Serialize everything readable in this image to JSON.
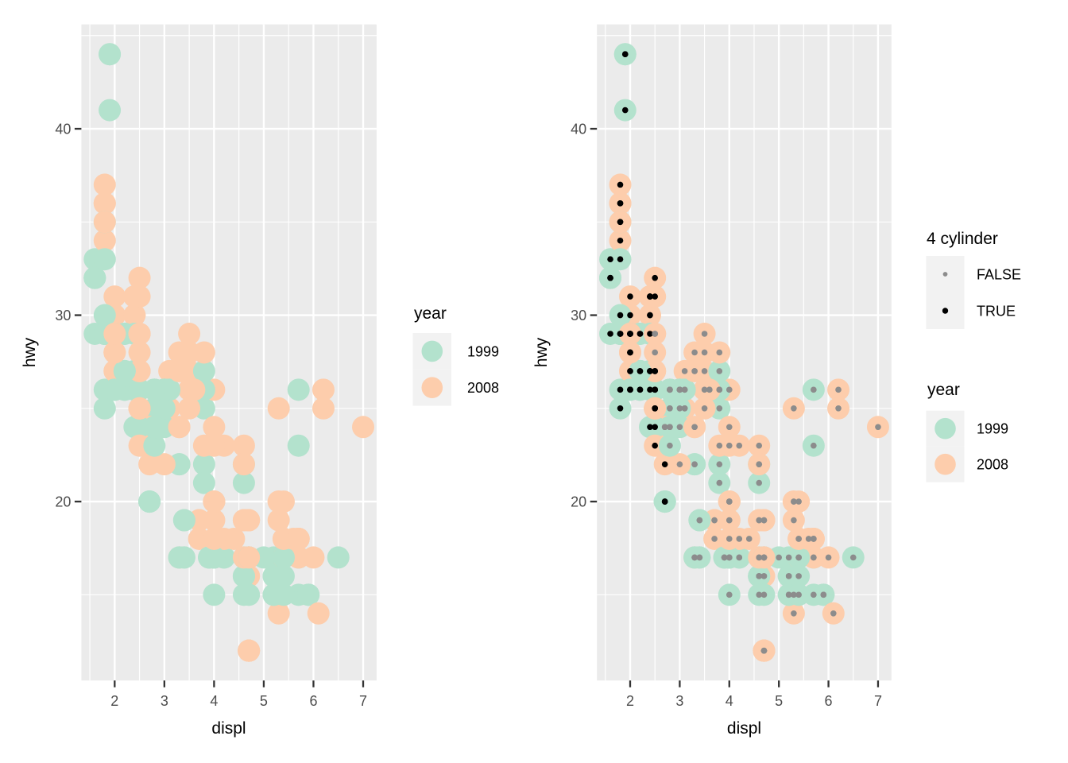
{
  "figure": {
    "background": "#FFFFFF",
    "panel_background": "#EBEBEB",
    "gridline_color": "#FFFFFF",
    "tick_mark_color": "#333333",
    "tick_label_color": "#4D4D4D",
    "legend_key_background": "#F2F2F2"
  },
  "chart_data": {
    "type": "scatter",
    "title": "",
    "xlabel": "displ",
    "ylabel": "hwy",
    "x_ticks": [
      2,
      3,
      4,
      5,
      6,
      7
    ],
    "y_ticks": [
      20,
      30,
      40
    ],
    "x_minor": [
      1.5,
      2.5,
      3.5,
      4.5,
      5.5,
      6.5
    ],
    "y_minor": [
      15,
      25,
      35,
      45
    ],
    "xlim": [
      1.33,
      7.27
    ],
    "ylim": [
      10.4,
      45.6
    ],
    "grid": "on",
    "panels": [
      {
        "name": "left",
        "overlay_cyl4_points": false
      },
      {
        "name": "right",
        "overlay_cyl4_points": true
      }
    ],
    "legends": {
      "cyl4": {
        "title": "4 cylinder",
        "position": "right-of-right-panel",
        "entries": [
          {
            "label": "FALSE",
            "color": "#8C8C8C"
          },
          {
            "label": "TRUE",
            "color": "#000000"
          }
        ]
      },
      "year": {
        "title": "year",
        "position": "right-of-each-panel",
        "entries": [
          {
            "label": "1999",
            "color": "#B3E2CD"
          },
          {
            "label": "2008",
            "color": "#FDCDAC"
          }
        ]
      }
    },
    "style": {
      "color_1999": "#B3E2CD",
      "color_2008": "#FDCDAC",
      "color_cyl4_true": "#000000",
      "color_cyl4_false": "#8C8C8C",
      "big_point_radius": 14,
      "small_point_radius": 3.8
    },
    "columns": [
      "displ",
      "hwy",
      "year",
      "cyl"
    ],
    "points": [
      [
        1.8,
        29,
        1999,
        4
      ],
      [
        1.8,
        29,
        1999,
        4
      ],
      [
        2.0,
        31,
        2008,
        4
      ],
      [
        2.0,
        30,
        2008,
        4
      ],
      [
        2.8,
        26,
        1999,
        6
      ],
      [
        2.8,
        26,
        1999,
        6
      ],
      [
        3.1,
        27,
        2008,
        6
      ],
      [
        1.8,
        26,
        1999,
        4
      ],
      [
        1.8,
        25,
        1999,
        4
      ],
      [
        2.0,
        28,
        2008,
        4
      ],
      [
        2.0,
        27,
        2008,
        4
      ],
      [
        2.8,
        25,
        1999,
        6
      ],
      [
        2.8,
        25,
        1999,
        6
      ],
      [
        3.1,
        25,
        2008,
        6
      ],
      [
        3.1,
        25,
        2008,
        6
      ],
      [
        2.8,
        24,
        1999,
        6
      ],
      [
        3.1,
        25,
        2008,
        6
      ],
      [
        4.2,
        23,
        2008,
        8
      ],
      [
        5.3,
        20,
        2008,
        8
      ],
      [
        5.3,
        15,
        2008,
        8
      ],
      [
        5.3,
        20,
        2008,
        8
      ],
      [
        5.7,
        17,
        1999,
        8
      ],
      [
        6.0,
        17,
        2008,
        8
      ],
      [
        5.7,
        26,
        1999,
        8
      ],
      [
        5.7,
        23,
        1999,
        8
      ],
      [
        6.2,
        26,
        2008,
        8
      ],
      [
        6.2,
        25,
        2008,
        8
      ],
      [
        7.0,
        24,
        2008,
        8
      ],
      [
        5.3,
        19,
        2008,
        8
      ],
      [
        5.3,
        14,
        2008,
        8
      ],
      [
        5.7,
        15,
        1999,
        8
      ],
      [
        6.5,
        17,
        1999,
        8
      ],
      [
        2.4,
        27,
        1999,
        4
      ],
      [
        2.4,
        30,
        2008,
        4
      ],
      [
        3.1,
        26,
        1999,
        6
      ],
      [
        3.5,
        29,
        2008,
        6
      ],
      [
        3.6,
        26,
        2008,
        6
      ],
      [
        2.4,
        24,
        1999,
        4
      ],
      [
        3.0,
        24,
        1999,
        6
      ],
      [
        3.3,
        22,
        1999,
        6
      ],
      [
        3.3,
        22,
        1999,
        6
      ],
      [
        3.3,
        24,
        2008,
        6
      ],
      [
        3.3,
        24,
        2008,
        6
      ],
      [
        3.3,
        17,
        2008,
        6
      ],
      [
        3.8,
        22,
        1999,
        6
      ],
      [
        3.8,
        21,
        1999,
        6
      ],
      [
        3.8,
        23,
        2008,
        6
      ],
      [
        4.0,
        23,
        2008,
        6
      ],
      [
        3.7,
        19,
        2008,
        6
      ],
      [
        3.7,
        18,
        2008,
        6
      ],
      [
        3.9,
        17,
        1999,
        6
      ],
      [
        3.9,
        17,
        1999,
        6
      ],
      [
        4.7,
        19,
        2008,
        8
      ],
      [
        4.7,
        19,
        2008,
        8
      ],
      [
        4.7,
        12,
        2008,
        8
      ],
      [
        5.2,
        17,
        1999,
        8
      ],
      [
        5.2,
        15,
        1999,
        8
      ],
      [
        3.9,
        17,
        1999,
        6
      ],
      [
        4.7,
        17,
        2008,
        8
      ],
      [
        4.7,
        12,
        2008,
        8
      ],
      [
        4.7,
        17,
        2008,
        8
      ],
      [
        5.2,
        16,
        1999,
        8
      ],
      [
        5.7,
        18,
        2008,
        8
      ],
      [
        5.9,
        15,
        1999,
        8
      ],
      [
        4.7,
        16,
        2008,
        8
      ],
      [
        4.7,
        12,
        2008,
        8
      ],
      [
        4.7,
        17,
        2008,
        8
      ],
      [
        4.7,
        17,
        2008,
        8
      ],
      [
        4.7,
        16,
        2008,
        8
      ],
      [
        4.7,
        12,
        2008,
        8
      ],
      [
        5.2,
        15,
        1999,
        8
      ],
      [
        5.2,
        16,
        1999,
        8
      ],
      [
        5.7,
        17,
        2008,
        8
      ],
      [
        5.9,
        15,
        1999,
        8
      ],
      [
        4.6,
        17,
        1999,
        8
      ],
      [
        5.4,
        17,
        1999,
        8
      ],
      [
        5.4,
        18,
        2008,
        8
      ],
      [
        4.0,
        17,
        1999,
        6
      ],
      [
        4.0,
        17,
        1999,
        6
      ],
      [
        4.0,
        17,
        1999,
        6
      ],
      [
        4.0,
        19,
        2008,
        6
      ],
      [
        4.6,
        19,
        2008,
        8
      ],
      [
        4.2,
        17,
        1999,
        6
      ],
      [
        4.2,
        17,
        1999,
        6
      ],
      [
        4.6,
        16,
        1999,
        8
      ],
      [
        4.6,
        16,
        1999,
        8
      ],
      [
        4.6,
        16,
        1999,
        8
      ],
      [
        4.6,
        17,
        2008,
        8
      ],
      [
        5.4,
        15,
        1999,
        8
      ],
      [
        5.4,
        17,
        2008,
        8
      ],
      [
        3.8,
        26,
        1999,
        6
      ],
      [
        3.8,
        25,
        1999,
        6
      ],
      [
        4.0,
        26,
        2008,
        6
      ],
      [
        4.0,
        24,
        2008,
        6
      ],
      [
        4.6,
        21,
        1999,
        8
      ],
      [
        4.6,
        22,
        1999,
        8
      ],
      [
        4.6,
        23,
        2008,
        8
      ],
      [
        4.6,
        22,
        2008,
        8
      ],
      [
        5.4,
        20,
        2008,
        8
      ],
      [
        1.6,
        33,
        1999,
        4
      ],
      [
        1.6,
        32,
        1999,
        4
      ],
      [
        1.6,
        32,
        1999,
        4
      ],
      [
        1.6,
        29,
        1999,
        4
      ],
      [
        1.6,
        32,
        1999,
        4
      ],
      [
        1.8,
        34,
        2008,
        4
      ],
      [
        1.8,
        36,
        2008,
        4
      ],
      [
        1.8,
        36,
        2008,
        4
      ],
      [
        2.0,
        29,
        2008,
        4
      ],
      [
        2.4,
        26,
        1999,
        4
      ],
      [
        2.4,
        27,
        1999,
        4
      ],
      [
        2.4,
        30,
        2008,
        4
      ],
      [
        2.4,
        31,
        2008,
        4
      ],
      [
        2.5,
        26,
        1999,
        6
      ],
      [
        2.5,
        26,
        1999,
        6
      ],
      [
        3.3,
        28,
        2008,
        6
      ],
      [
        2.0,
        26,
        1999,
        4
      ],
      [
        2.0,
        29,
        1999,
        4
      ],
      [
        2.0,
        28,
        2008,
        4
      ],
      [
        2.0,
        27,
        2008,
        4
      ],
      [
        2.7,
        24,
        2008,
        6
      ],
      [
        2.7,
        24,
        2008,
        6
      ],
      [
        2.7,
        24,
        2008,
        6
      ],
      [
        3.0,
        22,
        2008,
        6
      ],
      [
        3.7,
        19,
        2008,
        6
      ],
      [
        4.0,
        20,
        1999,
        6
      ],
      [
        4.7,
        17,
        1999,
        8
      ],
      [
        4.7,
        12,
        2008,
        8
      ],
      [
        4.7,
        19,
        2008,
        8
      ],
      [
        5.7,
        18,
        2008,
        8
      ],
      [
        6.1,
        14,
        2008,
        8
      ],
      [
        4.0,
        15,
        1999,
        8
      ],
      [
        4.2,
        18,
        2008,
        8
      ],
      [
        4.4,
        18,
        2008,
        8
      ],
      [
        4.6,
        15,
        1999,
        8
      ],
      [
        5.4,
        17,
        1999,
        8
      ],
      [
        5.4,
        16,
        1999,
        8
      ],
      [
        5.4,
        18,
        2008,
        8
      ],
      [
        4.0,
        17,
        1999,
        6
      ],
      [
        4.0,
        19,
        2008,
        6
      ],
      [
        4.6,
        19,
        2008,
        8
      ],
      [
        5.0,
        17,
        1999,
        8
      ],
      [
        2.4,
        29,
        1999,
        4
      ],
      [
        2.4,
        27,
        1999,
        4
      ],
      [
        2.5,
        31,
        2008,
        4
      ],
      [
        2.5,
        32,
        2008,
        4
      ],
      [
        3.5,
        27,
        2008,
        6
      ],
      [
        3.5,
        26,
        2008,
        6
      ],
      [
        3.0,
        26,
        1999,
        6
      ],
      [
        3.0,
        25,
        1999,
        6
      ],
      [
        3.5,
        25,
        2008,
        6
      ],
      [
        3.3,
        17,
        1999,
        6
      ],
      [
        3.3,
        17,
        1999,
        6
      ],
      [
        4.0,
        20,
        2008,
        6
      ],
      [
        5.6,
        18,
        2008,
        8
      ],
      [
        3.1,
        26,
        1999,
        6
      ],
      [
        3.8,
        26,
        1999,
        6
      ],
      [
        3.8,
        27,
        1999,
        6
      ],
      [
        3.8,
        28,
        2008,
        6
      ],
      [
        5.3,
        25,
        2008,
        8
      ],
      [
        2.5,
        25,
        1999,
        4
      ],
      [
        2.5,
        24,
        1999,
        4
      ],
      [
        2.5,
        27,
        2008,
        4
      ],
      [
        2.5,
        25,
        2008,
        4
      ],
      [
        2.5,
        26,
        2008,
        4
      ],
      [
        2.5,
        23,
        2008,
        4
      ],
      [
        2.2,
        26,
        1999,
        4
      ],
      [
        2.2,
        26,
        1999,
        4
      ],
      [
        2.5,
        26,
        1999,
        4
      ],
      [
        2.5,
        26,
        1999,
        4
      ],
      [
        2.5,
        25,
        2008,
        4
      ],
      [
        2.5,
        27,
        2008,
        4
      ],
      [
        2.5,
        25,
        2008,
        4
      ],
      [
        2.5,
        27,
        2008,
        4
      ],
      [
        2.7,
        20,
        1999,
        4
      ],
      [
        2.7,
        20,
        1999,
        4
      ],
      [
        3.4,
        19,
        1999,
        6
      ],
      [
        3.4,
        17,
        1999,
        6
      ],
      [
        4.0,
        20,
        2008,
        6
      ],
      [
        4.7,
        17,
        2008,
        8
      ],
      [
        2.2,
        29,
        1999,
        4
      ],
      [
        2.2,
        27,
        1999,
        4
      ],
      [
        2.4,
        31,
        2008,
        4
      ],
      [
        2.4,
        31,
        2008,
        4
      ],
      [
        3.0,
        26,
        1999,
        6
      ],
      [
        3.0,
        26,
        1999,
        6
      ],
      [
        3.5,
        28,
        2008,
        6
      ],
      [
        2.2,
        27,
        1999,
        4
      ],
      [
        2.2,
        29,
        1999,
        4
      ],
      [
        2.4,
        31,
        2008,
        4
      ],
      [
        2.4,
        31,
        2008,
        4
      ],
      [
        3.0,
        26,
        1999,
        6
      ],
      [
        3.3,
        27,
        2008,
        6
      ],
      [
        1.8,
        30,
        1999,
        4
      ],
      [
        1.8,
        33,
        1999,
        4
      ],
      [
        1.8,
        35,
        1999,
        4
      ],
      [
        1.8,
        37,
        2008,
        4
      ],
      [
        1.8,
        35,
        2008,
        4
      ],
      [
        4.7,
        15,
        1999,
        8
      ],
      [
        5.7,
        18,
        2008,
        8
      ],
      [
        3.0,
        26,
        1999,
        6
      ],
      [
        3.3,
        27,
        2008,
        6
      ],
      [
        2.7,
        20,
        1999,
        4
      ],
      [
        2.7,
        20,
        1999,
        4
      ],
      [
        2.7,
        22,
        2008,
        4
      ],
      [
        3.4,
        17,
        1999,
        6
      ],
      [
        3.4,
        19,
        1999,
        6
      ],
      [
        4.0,
        18,
        2008,
        6
      ],
      [
        4.0,
        20,
        2008,
        6
      ],
      [
        2.0,
        29,
        1999,
        4
      ],
      [
        2.0,
        26,
        1999,
        4
      ],
      [
        2.0,
        29,
        2008,
        4
      ],
      [
        2.0,
        29,
        2008,
        4
      ],
      [
        2.8,
        24,
        1999,
        6
      ],
      [
        1.9,
        44,
        1999,
        4
      ],
      [
        2.0,
        29,
        1999,
        4
      ],
      [
        2.0,
        26,
        1999,
        4
      ],
      [
        2.0,
        29,
        2008,
        4
      ],
      [
        2.0,
        29,
        2008,
        4
      ],
      [
        2.5,
        29,
        2008,
        5
      ],
      [
        2.5,
        29,
        2008,
        5
      ],
      [
        2.8,
        23,
        1999,
        6
      ],
      [
        2.8,
        24,
        1999,
        6
      ],
      [
        1.9,
        44,
        1999,
        4
      ],
      [
        1.9,
        41,
        1999,
        4
      ],
      [
        2.0,
        29,
        1999,
        4
      ],
      [
        2.0,
        26,
        1999,
        4
      ],
      [
        2.5,
        28,
        2008,
        5
      ],
      [
        2.5,
        29,
        2008,
        5
      ],
      [
        1.8,
        29,
        1999,
        4
      ],
      [
        1.8,
        29,
        1999,
        4
      ],
      [
        2.0,
        28,
        2008,
        4
      ],
      [
        2.0,
        29,
        2008,
        4
      ],
      [
        2.8,
        26,
        1999,
        6
      ],
      [
        2.8,
        26,
        1999,
        6
      ],
      [
        3.6,
        26,
        2008,
        6
      ]
    ]
  }
}
